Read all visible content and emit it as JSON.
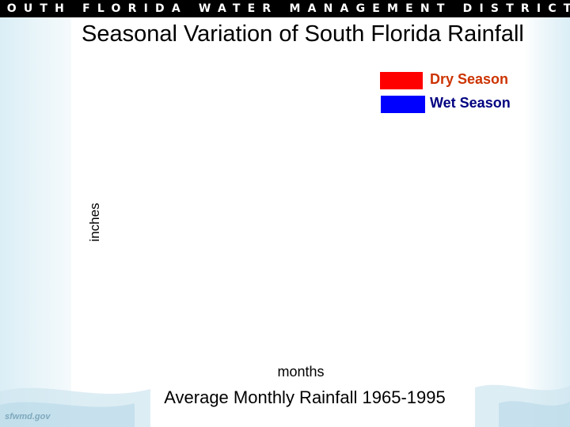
{
  "header": {
    "banner_text": "SOUTH FLORIDA WATER MANAGEMENT DISTRICT"
  },
  "logo_text": "sfwmd.gov",
  "chart_data": {
    "type": "bar",
    "title": "Seasonal Variation of South Florida Rainfall",
    "subtitle": "Average Monthly Rainfall 1965-1995",
    "xlabel": "months",
    "ylabel": "inches",
    "legend_position": "top-right",
    "series": [
      {
        "name": "Dry Season",
        "color": "#ff0000",
        "values": []
      },
      {
        "name": "Wet Season",
        "color": "#0000ff",
        "values": []
      }
    ]
  },
  "colors": {
    "dry_label": "#cc3300",
    "wet_label": "#000080"
  }
}
